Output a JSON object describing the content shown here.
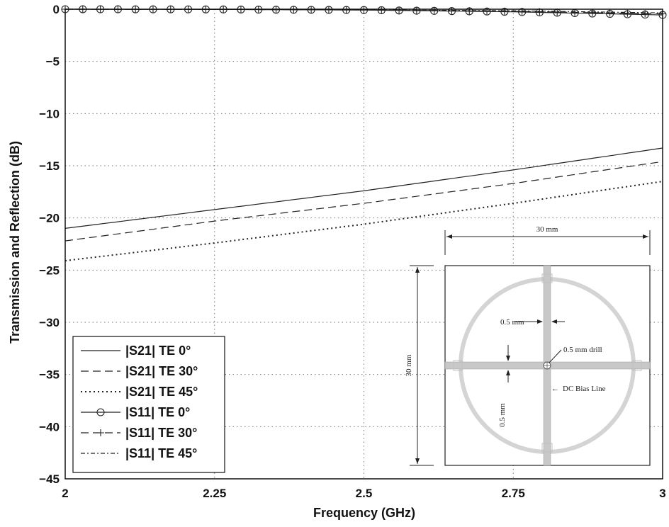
{
  "chart_data": {
    "type": "line",
    "title": "",
    "xlabel": "Frequency (GHz)",
    "ylabel": "Transmission and Reflection (dB)",
    "xlim": [
      2,
      3
    ],
    "ylim": [
      -45,
      0
    ],
    "x_ticks": [
      "2",
      "2.25",
      "2.5",
      "2.75",
      "3"
    ],
    "x_tick_values": [
      2,
      2.25,
      2.5,
      2.75,
      3
    ],
    "y_ticks": [
      "0",
      "−5",
      "−10",
      "−15",
      "−20",
      "−25",
      "−30",
      "−35",
      "−40",
      "−45"
    ],
    "y_tick_values": [
      0,
      -5,
      -10,
      -15,
      -20,
      -25,
      -30,
      -35,
      -40,
      -45
    ],
    "grid": true,
    "legend_position": "bottom-left",
    "series": [
      {
        "name": "|S21| TE 0°",
        "style": "solid",
        "marker": "none",
        "x": [
          2,
          2.25,
          2.5,
          2.75,
          3
        ],
        "y": [
          -21.0,
          -19.2,
          -17.4,
          -15.4,
          -13.3
        ]
      },
      {
        "name": "|S21| TE 30°",
        "style": "dashed",
        "marker": "none",
        "x": [
          2,
          2.25,
          2.5,
          2.75,
          3
        ],
        "y": [
          -22.2,
          -20.3,
          -18.6,
          -16.7,
          -14.6
        ]
      },
      {
        "name": "|S21| TE 45°",
        "style": "dotted",
        "marker": "none",
        "x": [
          2,
          2.25,
          2.5,
          2.75,
          3
        ],
        "y": [
          -24.1,
          -22.4,
          -20.6,
          -18.6,
          -16.5
        ]
      },
      {
        "name": "|S11| TE 0°",
        "style": "solid",
        "marker": "circle",
        "x": [
          2,
          2.25,
          2.5,
          2.75,
          3
        ],
        "y": [
          0,
          -0.02,
          -0.08,
          -0.25,
          -0.55
        ]
      },
      {
        "name": "|S11| TE 30°",
        "style": "dashed",
        "marker": "plus",
        "x": [
          2,
          2.25,
          2.5,
          2.75,
          3
        ],
        "y": [
          0,
          -0.02,
          -0.07,
          -0.2,
          -0.45
        ]
      },
      {
        "name": "|S11| TE 45°",
        "style": "dashdot",
        "marker": "none",
        "x": [
          2,
          2.25,
          2.5,
          2.75,
          3
        ],
        "y": [
          0,
          -0.01,
          -0.05,
          -0.15,
          -0.35
        ]
      }
    ],
    "inset": {
      "top_dimension": "30 mm",
      "side_dimension": "30 mm",
      "line_width_label": "0.5 mm",
      "gap_label": "0.5 mm",
      "drill_label": "0.5 mm drill",
      "bias_label": "DC Bias Line"
    }
  }
}
